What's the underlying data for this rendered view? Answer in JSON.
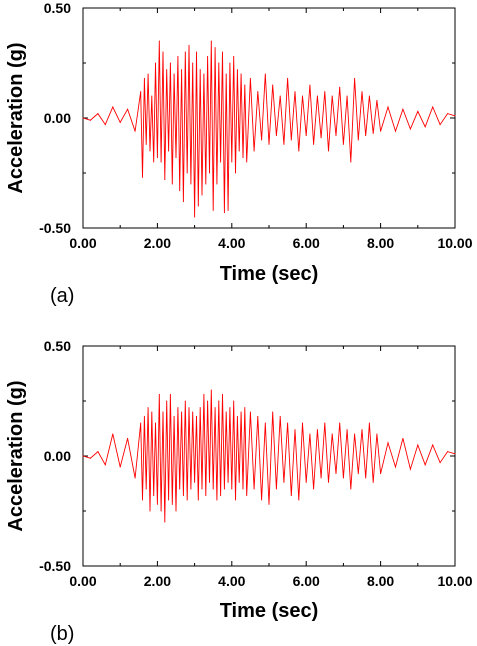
{
  "chart_data": [
    {
      "type": "line",
      "panel_label": "(a)",
      "xlabel": "Time (sec)",
      "ylabel": "Acceleration (g)",
      "xlim": [
        0,
        10
      ],
      "ylim": [
        -0.5,
        0.5
      ],
      "xticks": [
        "0.00",
        "2.00",
        "4.00",
        "6.00",
        "8.00",
        "10.00"
      ],
      "yticks": [
        "0.50",
        "0.00",
        "-0.50"
      ],
      "grid": false,
      "series_color": "#ff0000",
      "series": [
        {
          "x": [
            0.0,
            0.2,
            0.4,
            0.6,
            0.8,
            1.0,
            1.2,
            1.4,
            1.55,
            1.6,
            1.65,
            1.7,
            1.75,
            1.8,
            1.85,
            1.9,
            1.95,
            2.0,
            2.05,
            2.1,
            2.15,
            2.2,
            2.25,
            2.3,
            2.35,
            2.4,
            2.45,
            2.5,
            2.55,
            2.6,
            2.65,
            2.7,
            2.75,
            2.8,
            2.85,
            2.9,
            2.95,
            3.0,
            3.05,
            3.1,
            3.15,
            3.2,
            3.25,
            3.3,
            3.35,
            3.4,
            3.45,
            3.5,
            3.55,
            3.6,
            3.65,
            3.7,
            3.75,
            3.8,
            3.85,
            3.9,
            3.95,
            4.0,
            4.05,
            4.1,
            4.15,
            4.2,
            4.25,
            4.3,
            4.35,
            4.4,
            4.5,
            4.6,
            4.7,
            4.8,
            4.9,
            5.0,
            5.1,
            5.2,
            5.3,
            5.4,
            5.5,
            5.6,
            5.7,
            5.8,
            5.9,
            6.0,
            6.1,
            6.2,
            6.3,
            6.4,
            6.5,
            6.6,
            6.7,
            6.8,
            6.9,
            7.0,
            7.1,
            7.2,
            7.3,
            7.4,
            7.5,
            7.6,
            7.7,
            7.8,
            7.9,
            8.0,
            8.2,
            8.4,
            8.6,
            8.8,
            9.0,
            9.2,
            9.4,
            9.6,
            9.8,
            10.0
          ],
          "y": [
            0.0,
            -0.01,
            0.02,
            -0.03,
            0.05,
            -0.02,
            0.04,
            -0.06,
            0.12,
            -0.27,
            0.18,
            -0.12,
            0.2,
            -0.15,
            0.1,
            -0.2,
            0.25,
            -0.18,
            0.35,
            -0.2,
            0.3,
            -0.28,
            0.22,
            -0.15,
            0.25,
            -0.3,
            0.2,
            -0.18,
            0.28,
            -0.33,
            0.22,
            -0.38,
            0.3,
            -0.25,
            0.33,
            -0.3,
            0.25,
            -0.45,
            0.3,
            -0.4,
            0.22,
            -0.35,
            0.2,
            -0.3,
            0.28,
            -0.25,
            0.35,
            -0.42,
            0.32,
            -0.3,
            0.25,
            -0.2,
            0.3,
            -0.43,
            0.2,
            -0.42,
            0.25,
            -0.2,
            0.28,
            -0.25,
            0.22,
            -0.15,
            0.2,
            -0.18,
            0.15,
            -0.2,
            0.18,
            -0.15,
            0.12,
            -0.1,
            0.2,
            -0.12,
            0.15,
            -0.08,
            0.1,
            -0.12,
            0.18,
            -0.1,
            0.12,
            -0.15,
            0.1,
            -0.08,
            0.15,
            -0.12,
            0.1,
            -0.09,
            0.12,
            -0.15,
            0.1,
            -0.08,
            0.14,
            -0.12,
            0.1,
            -0.2,
            0.18,
            -0.1,
            0.12,
            -0.08,
            0.1,
            -0.07,
            0.08,
            -0.06,
            0.05,
            -0.06,
            0.04,
            -0.05,
            0.03,
            -0.04,
            0.05,
            -0.03,
            0.02,
            0.01
          ]
        }
      ]
    },
    {
      "type": "line",
      "panel_label": "(b)",
      "xlabel": "Time (sec)",
      "ylabel": "Acceleration (g)",
      "xlim": [
        0,
        10
      ],
      "ylim": [
        -0.5,
        0.5
      ],
      "xticks": [
        "0.00",
        "2.00",
        "4.00",
        "6.00",
        "8.00",
        "10.00"
      ],
      "yticks": [
        "0.50",
        "0.00",
        "-0.50"
      ],
      "grid": false,
      "series_color": "#ff0000",
      "series": [
        {
          "x": [
            0.0,
            0.2,
            0.4,
            0.6,
            0.8,
            1.0,
            1.2,
            1.4,
            1.55,
            1.6,
            1.65,
            1.7,
            1.75,
            1.8,
            1.85,
            1.9,
            1.95,
            2.0,
            2.05,
            2.1,
            2.15,
            2.2,
            2.25,
            2.3,
            2.35,
            2.4,
            2.45,
            2.5,
            2.55,
            2.6,
            2.65,
            2.7,
            2.75,
            2.8,
            2.85,
            2.9,
            2.95,
            3.0,
            3.05,
            3.1,
            3.15,
            3.2,
            3.25,
            3.3,
            3.35,
            3.4,
            3.45,
            3.5,
            3.55,
            3.6,
            3.65,
            3.7,
            3.75,
            3.8,
            3.85,
            3.9,
            3.95,
            4.0,
            4.05,
            4.1,
            4.15,
            4.2,
            4.25,
            4.3,
            4.35,
            4.4,
            4.5,
            4.6,
            4.7,
            4.8,
            4.9,
            5.0,
            5.1,
            5.2,
            5.3,
            5.4,
            5.5,
            5.6,
            5.7,
            5.8,
            5.9,
            6.0,
            6.1,
            6.2,
            6.3,
            6.4,
            6.5,
            6.6,
            6.7,
            6.8,
            6.9,
            7.0,
            7.1,
            7.2,
            7.3,
            7.4,
            7.5,
            7.6,
            7.7,
            7.8,
            7.9,
            8.0,
            8.2,
            8.4,
            8.6,
            8.8,
            9.0,
            9.2,
            9.4,
            9.6,
            9.8,
            10.0
          ],
          "y": [
            0.0,
            -0.01,
            0.02,
            -0.04,
            0.1,
            -0.05,
            0.08,
            -0.1,
            0.15,
            -0.2,
            0.18,
            -0.15,
            0.22,
            -0.25,
            0.2,
            -0.18,
            0.15,
            -0.22,
            0.28,
            -0.25,
            0.2,
            -0.3,
            0.25,
            -0.2,
            0.28,
            -0.22,
            0.18,
            -0.25,
            0.22,
            -0.15,
            0.2,
            -0.18,
            0.25,
            -0.2,
            0.22,
            -0.15,
            0.2,
            -0.12,
            0.18,
            -0.2,
            0.22,
            -0.15,
            0.28,
            -0.18,
            0.25,
            -0.12,
            0.3,
            -0.15,
            0.22,
            -0.2,
            0.25,
            -0.18,
            0.28,
            -0.15,
            0.2,
            -0.12,
            0.22,
            -0.15,
            0.25,
            -0.2,
            0.18,
            -0.12,
            0.2,
            -0.15,
            0.22,
            -0.18,
            0.2,
            -0.15,
            0.18,
            -0.2,
            0.15,
            -0.22,
            0.2,
            -0.15,
            0.18,
            -0.12,
            0.15,
            -0.18,
            0.12,
            -0.2,
            0.15,
            -0.12,
            0.1,
            -0.15,
            0.12,
            -0.1,
            0.15,
            -0.12,
            0.1,
            -0.08,
            0.15,
            -0.1,
            0.12,
            -0.15,
            0.1,
            -0.08,
            0.12,
            -0.1,
            0.15,
            -0.12,
            0.1,
            -0.08,
            0.06,
            -0.05,
            0.08,
            -0.06,
            0.05,
            -0.04,
            0.05,
            -0.03,
            0.02,
            0.01
          ]
        }
      ]
    }
  ]
}
